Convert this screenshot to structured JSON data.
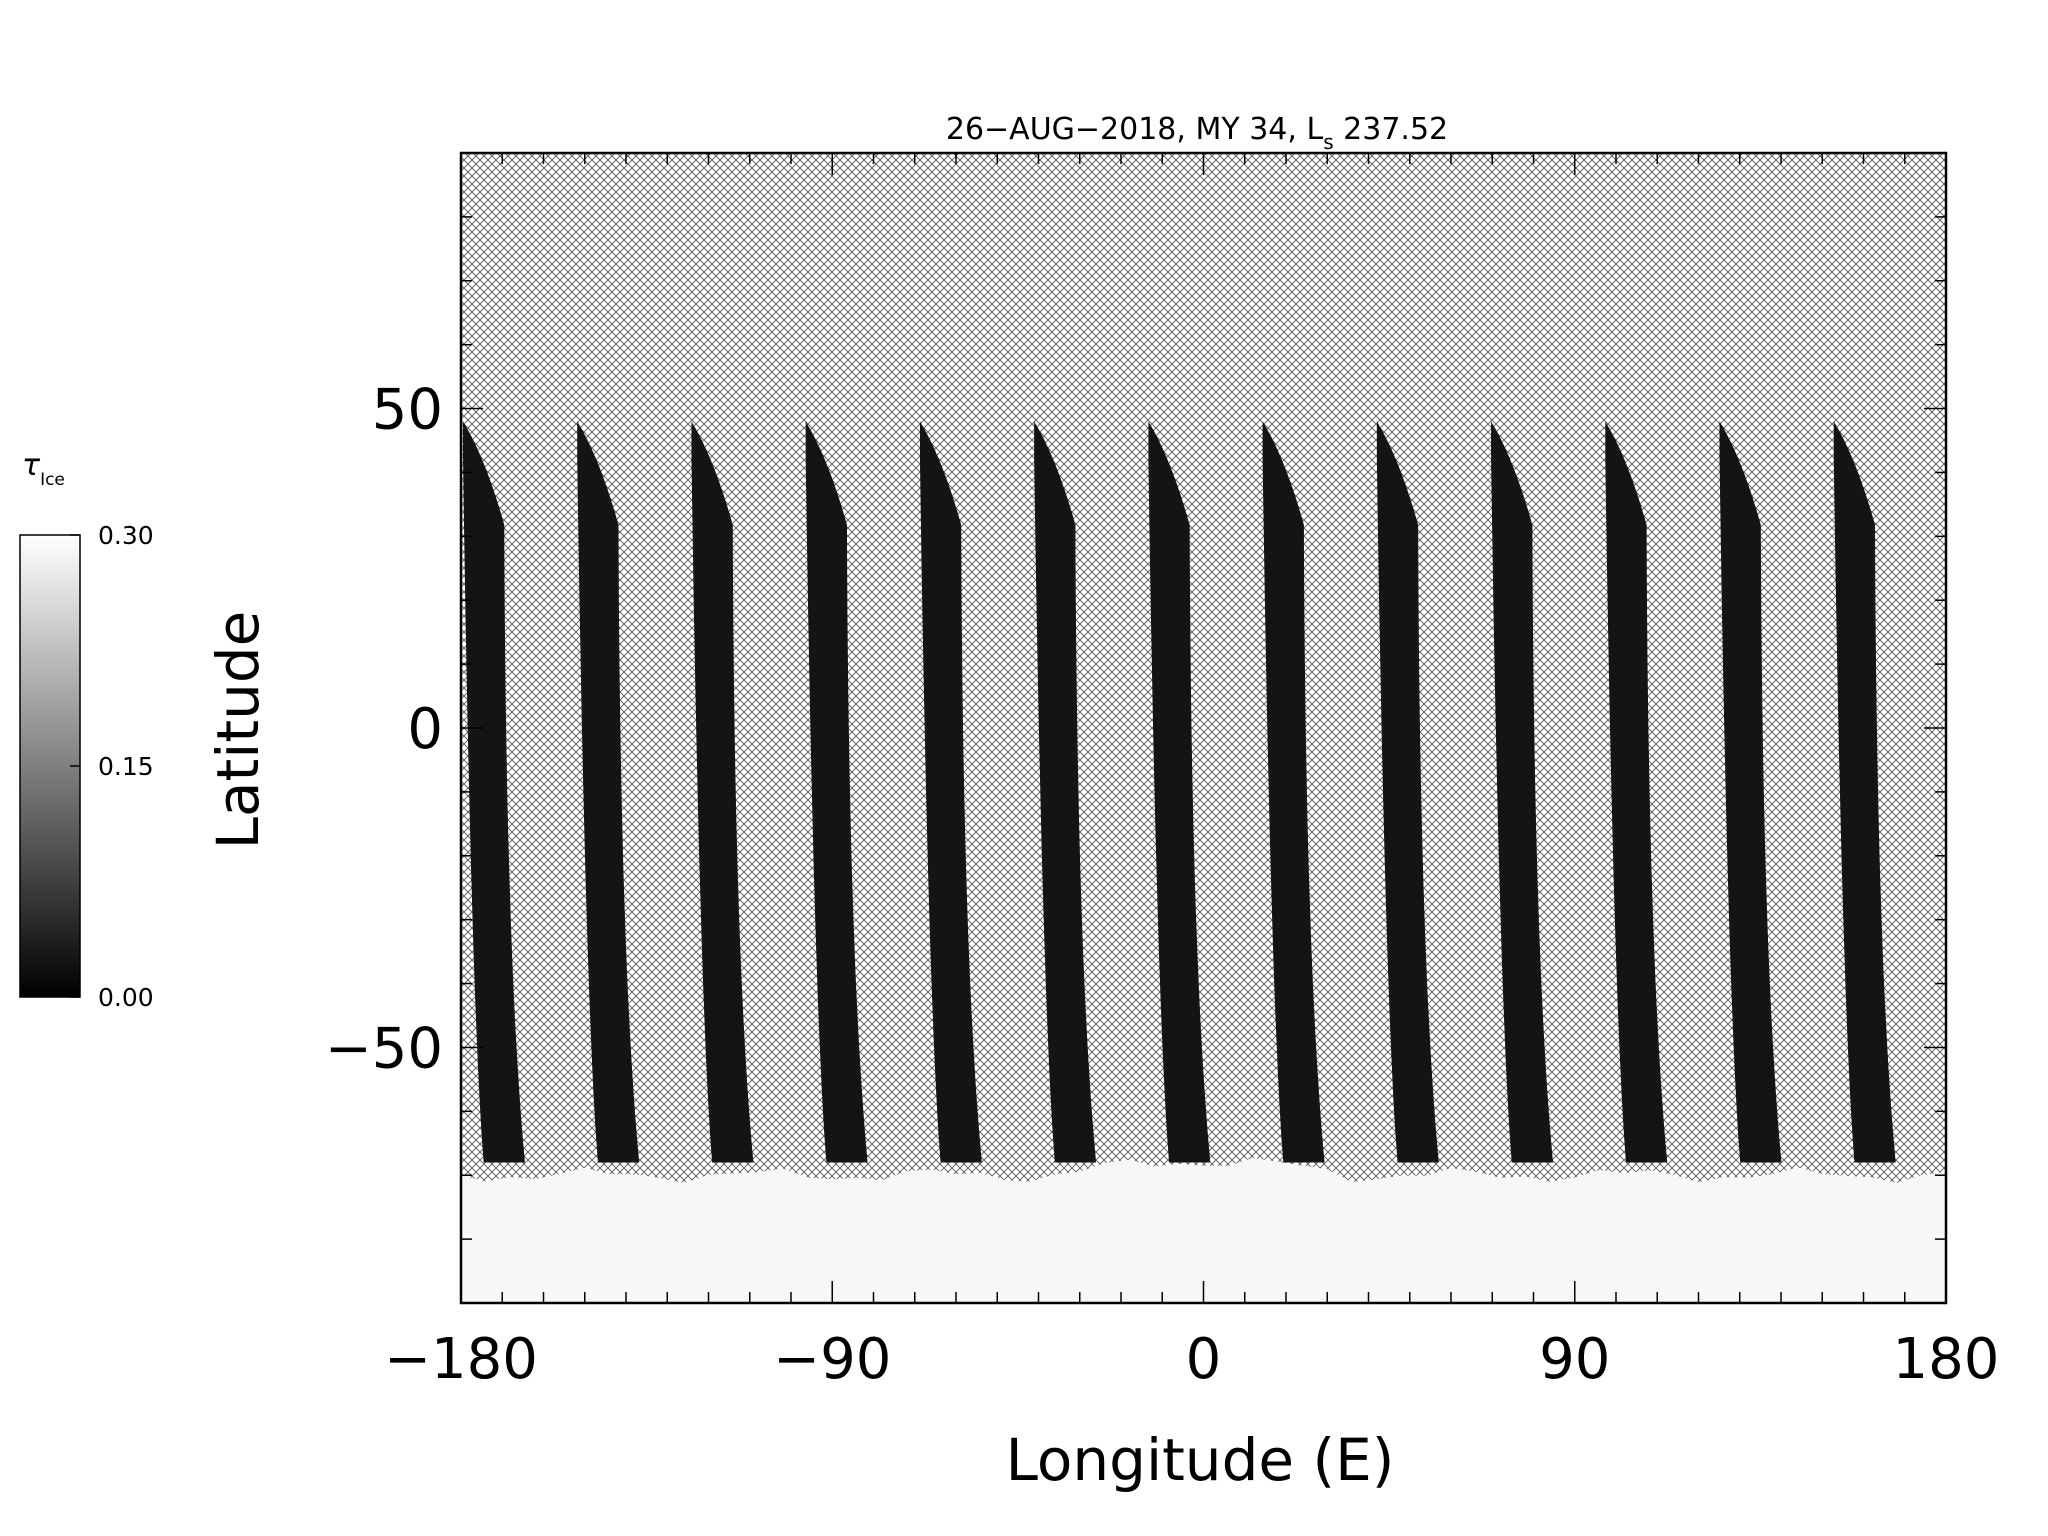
{
  "chart_data": {
    "type": "heatmap",
    "title": "26−AUG−2018, MY 34,  L",
    "title_sub": "s",
    "title_tail": " 237.52",
    "xlabel": "Longitude (E)",
    "ylabel": "Latitude",
    "xlim": [
      -180,
      180
    ],
    "ylim": [
      -90,
      90
    ],
    "x_ticks": [
      -180,
      -90,
      0,
      90,
      180
    ],
    "x_tick_labels": [
      "−180",
      "−90",
      "0",
      "90",
      "180"
    ],
    "y_ticks": [
      -50,
      0,
      50
    ],
    "y_tick_labels": [
      "−50",
      "0",
      "50"
    ],
    "x_minor_step": 10,
    "y_minor_step": 10,
    "colorbar": {
      "label_main": "τ",
      "label_sub": "Ice",
      "min": 0.0,
      "max": 0.3,
      "ticks": [
        "0.00",
        "0.15",
        "0.30"
      ],
      "colormap": "grayscale",
      "low_color": "#000000",
      "high_color": "#ffffff"
    },
    "no_data_pattern": "crosshatch",
    "swath_count": 13,
    "swath_top_lat": 48,
    "swath_bottom_lat": -68,
    "south_cap_boundary_lat": -70,
    "south_cap_value": 0.3,
    "swath_value": 0.02,
    "grid": false,
    "colors": {
      "swath": "#141414",
      "cap": "#f7f7f7",
      "hatch": "#555555"
    }
  }
}
